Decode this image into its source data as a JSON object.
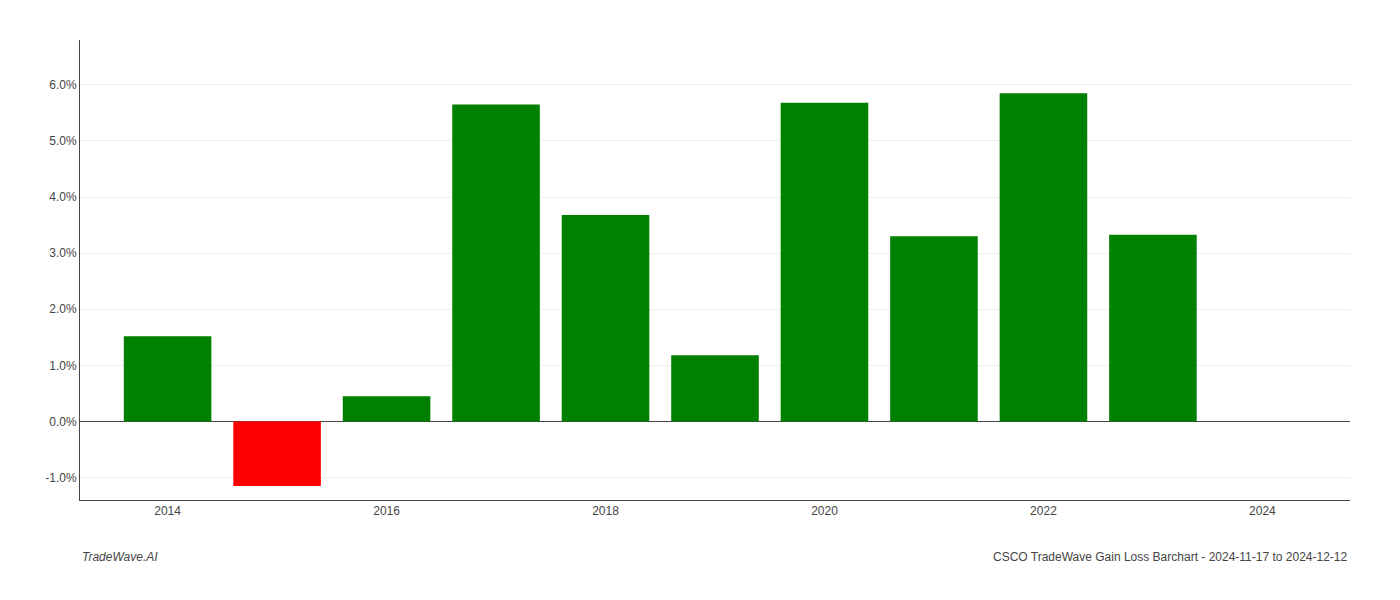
{
  "chart_data": {
    "type": "bar",
    "x": [
      2014,
      2015,
      2016,
      2017,
      2018,
      2019,
      2020,
      2021,
      2022,
      2023
    ],
    "values": [
      0.0152,
      -0.0115,
      0.0045,
      0.0565,
      0.0368,
      0.0118,
      0.0568,
      0.033,
      0.0585,
      0.0333
    ],
    "colors": [
      "#008000",
      "#ff0000",
      "#008000",
      "#008000",
      "#008000",
      "#008000",
      "#008000",
      "#008000",
      "#008000",
      "#008000"
    ],
    "xlim": [
      2013.2,
      2024.8
    ],
    "xticks": [
      2014,
      2016,
      2018,
      2020,
      2022,
      2024
    ],
    "ylim": [
      -0.014,
      0.068
    ],
    "yticks": [
      {
        "value": -0.01,
        "label": "-1.0%"
      },
      {
        "value": 0.0,
        "label": "0.0%"
      },
      {
        "value": 0.01,
        "label": "1.0%"
      },
      {
        "value": 0.02,
        "label": "2.0%"
      },
      {
        "value": 0.03,
        "label": "3.0%"
      },
      {
        "value": 0.04,
        "label": "4.0%"
      },
      {
        "value": 0.05,
        "label": "5.0%"
      },
      {
        "value": 0.06,
        "label": "6.0%"
      }
    ],
    "grid": true,
    "annotations": [
      "TradeWave.AI",
      "CSCO TradeWave Gain Loss Barchart - 2024-11-17 to 2024-12-12"
    ]
  }
}
